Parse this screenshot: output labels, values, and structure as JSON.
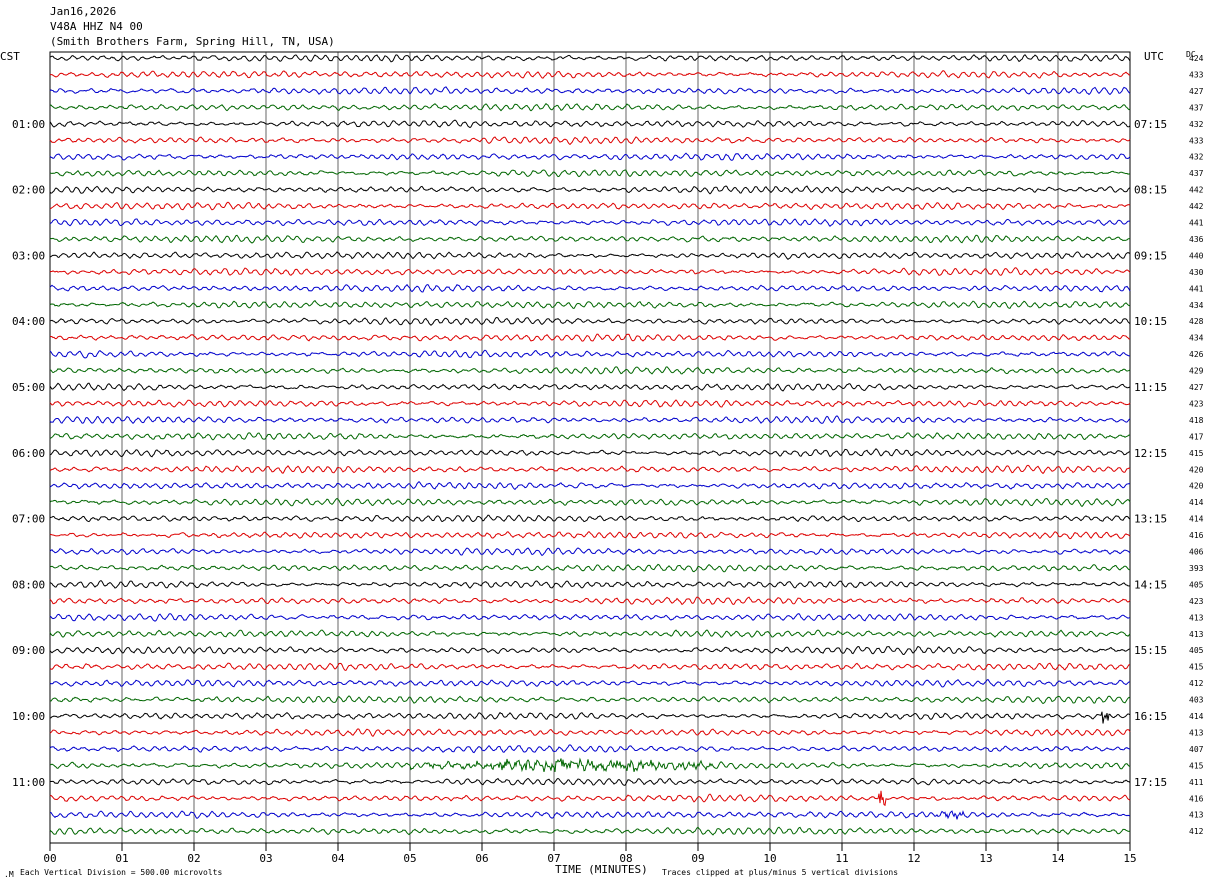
{
  "header": {
    "line1": "Jan16,2026",
    "line2": "V48A HHZ N4 00",
    "line3": "(Smith Brothers Farm, Spring Hill, TN, USA)"
  },
  "left_axis_title": "CST",
  "right_axis_title": "UTC",
  "dc_title": "DC",
  "footer": {
    "left": "Each Vertical Division =  500.00 microvolts",
    "center": "TIME (MINUTES)",
    "right": "Traces clipped at plus/minus 5 vertical divisions"
  },
  "colors": {
    "trace_cycle": [
      "#000000",
      "#dd0000",
      "#0000cc",
      "#006600"
    ],
    "grid": "#000000"
  },
  "chart_data": {
    "type": "line",
    "title": "",
    "xlabel": "TIME (MINUTES)",
    "ylabel": "",
    "xlim": [
      0,
      15
    ],
    "x_ticks": [
      "00",
      "01",
      "02",
      "03",
      "04",
      "05",
      "06",
      "07",
      "08",
      "09",
      "10",
      "11",
      "12",
      "13",
      "14",
      "15"
    ],
    "left_hour_labels": [
      "01:00",
      "02:00",
      "03:00",
      "04:00",
      "05:00",
      "06:00",
      "07:00",
      "08:00",
      "09:00",
      "10:00",
      "11:00"
    ],
    "right_hour_labels": [
      "07:15",
      "08:15",
      "09:15",
      "10:15",
      "11:15",
      "12:15",
      "13:15",
      "14:15",
      "15:15",
      "16:15",
      "17:15"
    ],
    "dc_offsets": [
      424,
      433,
      427,
      437,
      432,
      433,
      432,
      437,
      442,
      442,
      441,
      436,
      440,
      430,
      441,
      434,
      428,
      434,
      426,
      429,
      427,
      423,
      418,
      417,
      415,
      420,
      420,
      414,
      414,
      416,
      406,
      393,
      405,
      423,
      413,
      413,
      405,
      415,
      412,
      403,
      414,
      413,
      407,
      415,
      411,
      416,
      413,
      412
    ],
    "trace_count": 48,
    "trace_minutes": 15,
    "events": [
      {
        "trace": 43,
        "from_minute": 5.0,
        "to_minute": 9.2,
        "level": "elevated"
      },
      {
        "trace": 40,
        "from_minute": 14.6,
        "to_minute": 14.7,
        "level": "spike"
      },
      {
        "trace": 45,
        "from_minute": 11.5,
        "to_minute": 11.6,
        "level": "spike"
      },
      {
        "trace": 46,
        "from_minute": 12.3,
        "to_minute": 12.7,
        "level": "minor"
      }
    ]
  }
}
